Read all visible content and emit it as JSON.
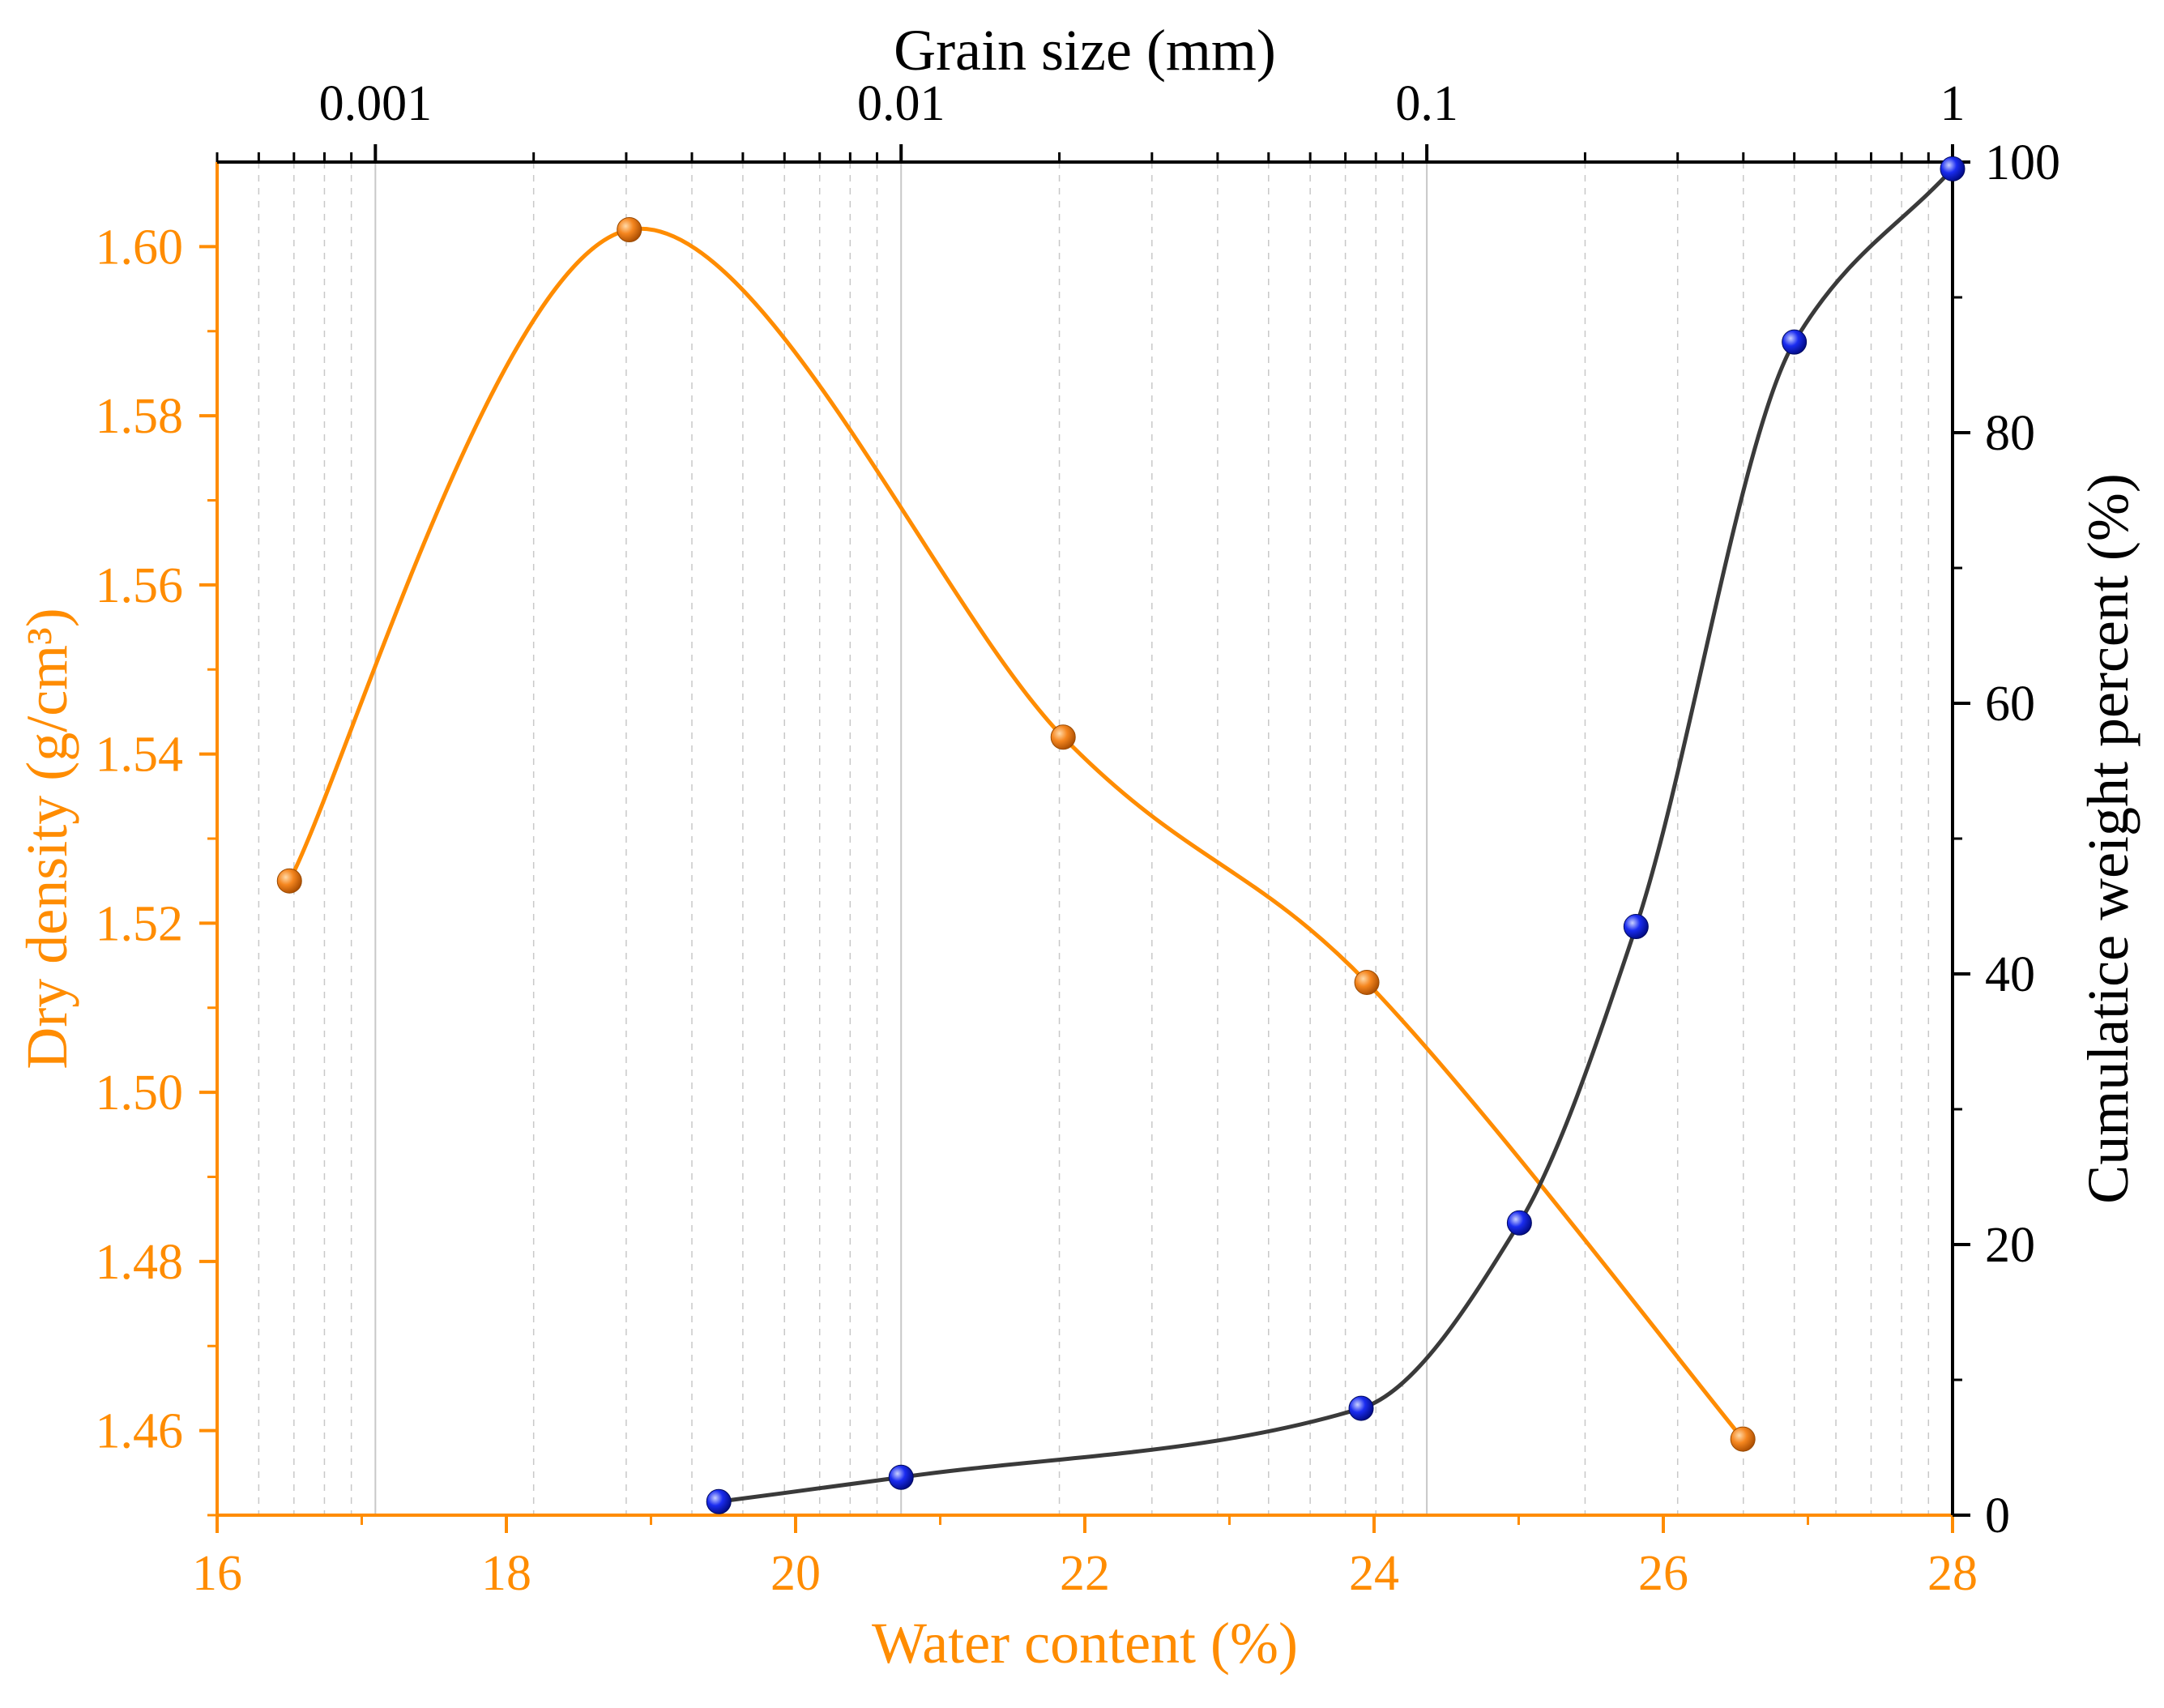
{
  "chart_data": {
    "type": "line",
    "title": "",
    "colors": {
      "density": "#ff8c00",
      "density_marker": "#f5861f",
      "cumulative_line": "#3a3a3a",
      "cumulative_marker": "#1a2cf0",
      "grid": "#c8c8c8",
      "axis": "#000000"
    },
    "bottom_axis": {
      "label": "Water content (%)",
      "range": [
        16,
        28
      ],
      "ticks": [
        16,
        18,
        20,
        22,
        24,
        26,
        28
      ],
      "tick_labels": [
        "16",
        "18",
        "20",
        "22",
        "24",
        "26",
        "28"
      ]
    },
    "left_axis": {
      "label": "Dry density (g/cm³)",
      "range": [
        1.45,
        1.61
      ],
      "ticks": [
        1.46,
        1.48,
        1.5,
        1.52,
        1.54,
        1.56,
        1.58,
        1.6
      ],
      "tick_labels": [
        "1.46",
        "1.48",
        "1.50",
        "1.52",
        "1.54",
        "1.56",
        "1.58",
        "1.60"
      ]
    },
    "top_axis": {
      "label": "Grain size (mm)",
      "scale": "log",
      "range": [
        0.0005,
        1
      ],
      "ticks": [
        0.001,
        0.01,
        0.1,
        1
      ],
      "tick_labels": [
        "0.001",
        "0.01",
        "0.1",
        "1"
      ]
    },
    "right_axis": {
      "label": "Cumulatice weight percent (%)",
      "range": [
        0,
        100
      ],
      "ticks": [
        0,
        20,
        40,
        60,
        80,
        100
      ],
      "tick_labels": [
        "0",
        "20",
        "40",
        "60",
        "80",
        "100"
      ]
    },
    "series": [
      {
        "name": "Dry density",
        "axes": "bottom-left",
        "x": [
          16.5,
          18.85,
          21.85,
          23.95,
          26.55
        ],
        "y": [
          1.525,
          1.602,
          1.542,
          1.513,
          1.459
        ]
      },
      {
        "name": "Cumulative weight percent",
        "axes": "top-right",
        "x": [
          0.0045,
          0.01,
          0.075,
          0.15,
          0.25,
          0.5,
          1.0
        ],
        "y": [
          1.0,
          2.8,
          7.9,
          21.6,
          43.5,
          86.7,
          99.5
        ]
      }
    ]
  }
}
